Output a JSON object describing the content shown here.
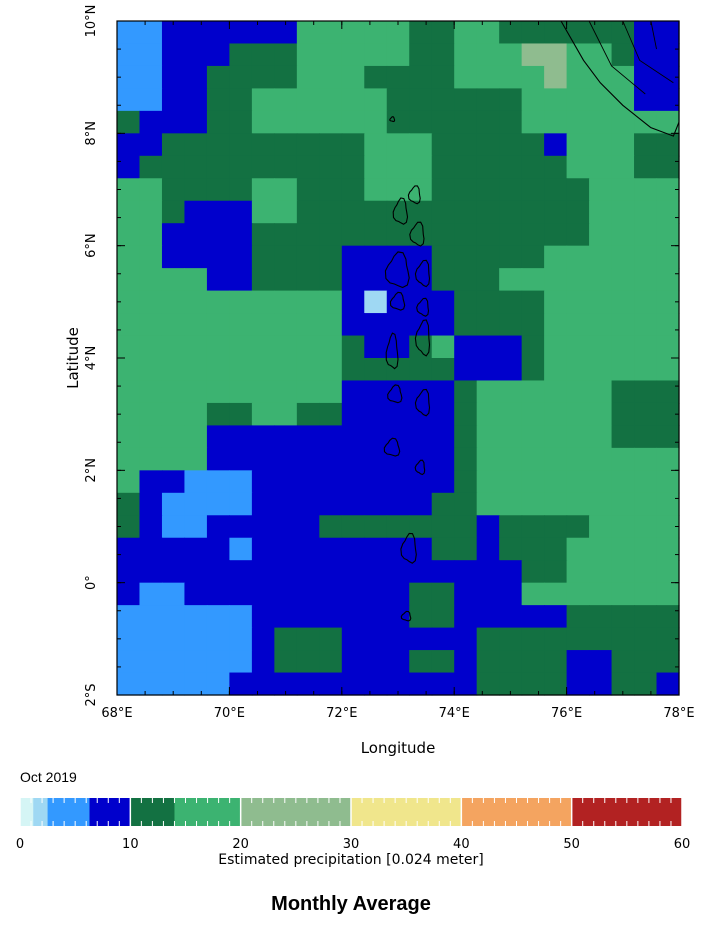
{
  "map": {
    "title": "Monthly Average",
    "period": "Oct 2019",
    "xlabel": "Longitude",
    "ylabel": "Latitude",
    "lon_range": [
      68,
      78
    ],
    "lat_range": [
      -2,
      10
    ],
    "lon_ticks": [
      {
        "value": 68,
        "label": "68°E"
      },
      {
        "value": 70,
        "label": "70°E"
      },
      {
        "value": 72,
        "label": "72°E"
      },
      {
        "value": 74,
        "label": "74°E"
      },
      {
        "value": 76,
        "label": "76°E"
      },
      {
        "value": 78,
        "label": "78°E"
      }
    ],
    "lat_ticks": [
      {
        "value": 10,
        "label": "10°N"
      },
      {
        "value": 8,
        "label": "8°N"
      },
      {
        "value": 6,
        "label": "6°N"
      },
      {
        "value": 4,
        "label": "4°N"
      },
      {
        "value": 2,
        "label": "2°N"
      },
      {
        "value": 0,
        "label": "0°"
      },
      {
        "value": -2,
        "label": "2°S"
      }
    ],
    "grid_rows": 30,
    "grid_cols": 25,
    "colorbar": {
      "label": "Estimated precipitation [0.024 meter]",
      "min": 0,
      "max": 60,
      "tick_labels": [
        {
          "value": 0,
          "label": "0"
        },
        {
          "value": 10,
          "label": "10"
        },
        {
          "value": 20,
          "label": "20"
        },
        {
          "value": 30,
          "label": "30"
        },
        {
          "value": 40,
          "label": "40"
        },
        {
          "value": 50,
          "label": "50"
        },
        {
          "value": 60,
          "label": "60"
        }
      ],
      "bins": [
        {
          "from": 0,
          "to": 1.2,
          "color": "#d5f5f5"
        },
        {
          "from": 1.2,
          "to": 2.5,
          "color": "#9fd8f3"
        },
        {
          "from": 2.5,
          "to": 6.3,
          "color": "#3399ff"
        },
        {
          "from": 6.3,
          "to": 10,
          "color": "#0000cc"
        },
        {
          "from": 10,
          "to": 14,
          "color": "#137142"
        },
        {
          "from": 14,
          "to": 20,
          "color": "#3cb371"
        },
        {
          "from": 20,
          "to": 30,
          "color": "#8fbc8f"
        },
        {
          "from": 30,
          "to": 40,
          "color": "#f0e68c"
        },
        {
          "from": 40,
          "to": 50,
          "color": "#f4a460"
        },
        {
          "from": 50,
          "to": 60,
          "color": "#b22222"
        }
      ]
    }
  }
}
